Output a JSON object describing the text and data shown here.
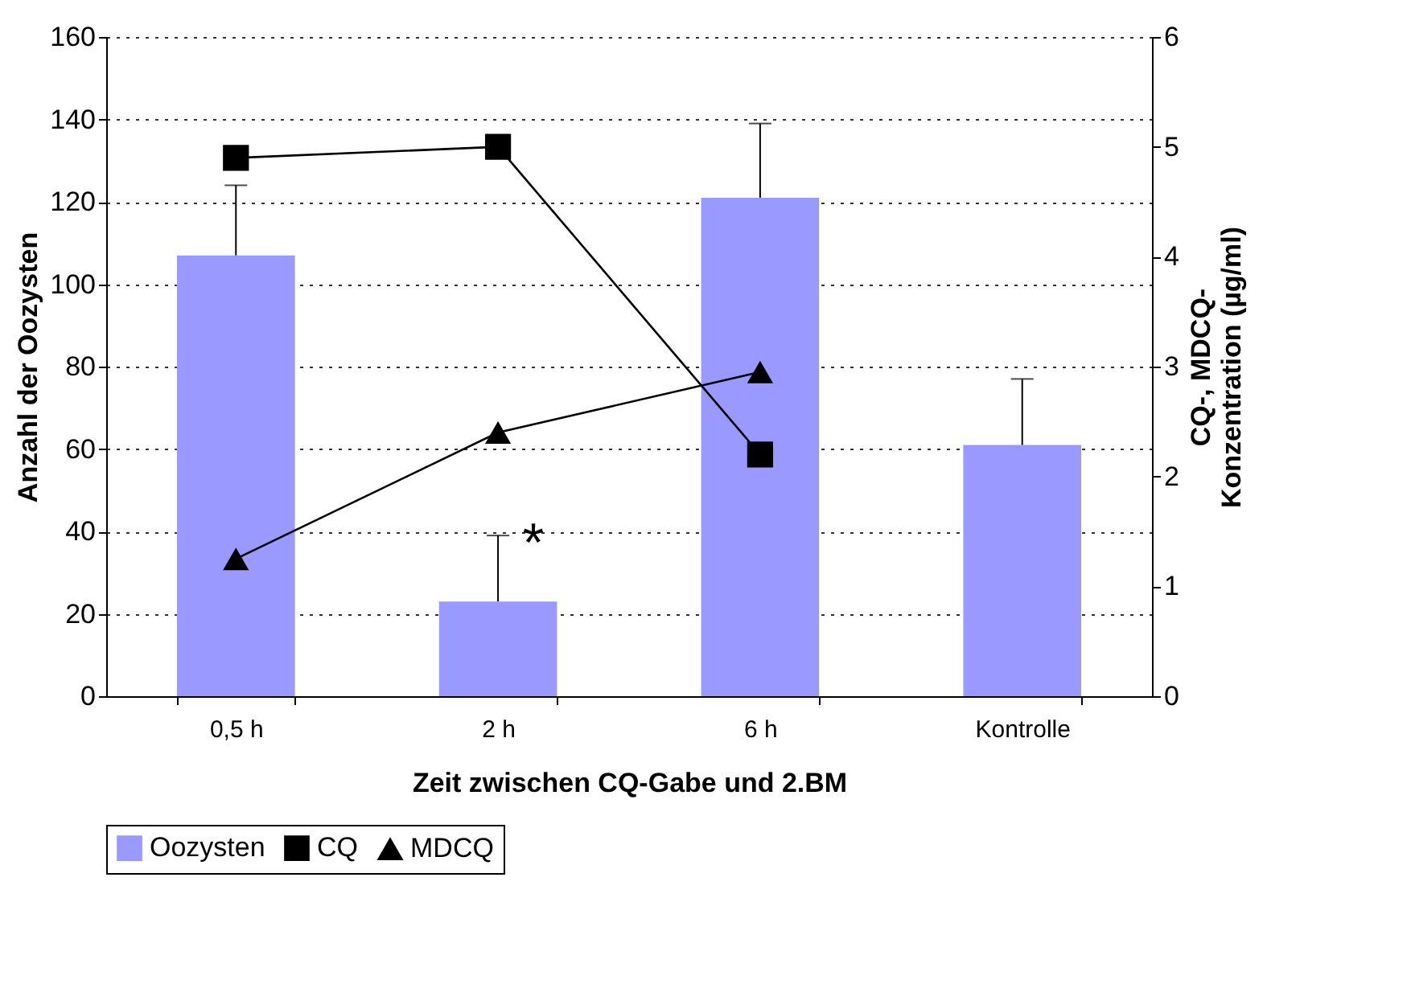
{
  "chart_data": {
    "type": "bar",
    "xlabel": "Zeit zwischen CQ-Gabe und 2.BM",
    "ylabel": "Anzahl der Oozysten",
    "y2label": "CQ-, MDCQ-Konzentration (µg/ml)",
    "categories": [
      "0,5 h",
      "2 h",
      "6 h",
      "Kontrolle"
    ],
    "series": [
      {
        "name": "Oozysten",
        "color": "#9999ff",
        "values": [
          107,
          23,
          121,
          61
        ],
        "errors": [
          [
            107,
            124
          ],
          [
            23,
            39
          ],
          [
            121,
            139
          ],
          [
            61,
            77
          ]
        ]
      },
      {
        "name": "CQ",
        "type": "line",
        "axis": "y2",
        "color": "#000000",
        "marker": "square",
        "values": [
          4.9,
          5.0,
          2.2,
          null
        ]
      },
      {
        "name": "MDCQ",
        "type": "line",
        "axis": "y2",
        "color": "#000000",
        "marker": "triangle",
        "values": [
          1.25,
          2.4,
          2.95,
          null
        ]
      }
    ],
    "ylim": [
      0,
      160
    ],
    "yticks": [
      0,
      20,
      40,
      60,
      80,
      100,
      120,
      140,
      160
    ],
    "y2lim": [
      0,
      6
    ],
    "y2ticks": [
      0,
      1,
      2,
      3,
      4,
      5,
      6
    ],
    "grid": "y",
    "legend": "bottom",
    "line_style": "solid",
    "annotations": [
      {
        "text": "*",
        "x": "2 h",
        "y": 39
      }
    ]
  }
}
